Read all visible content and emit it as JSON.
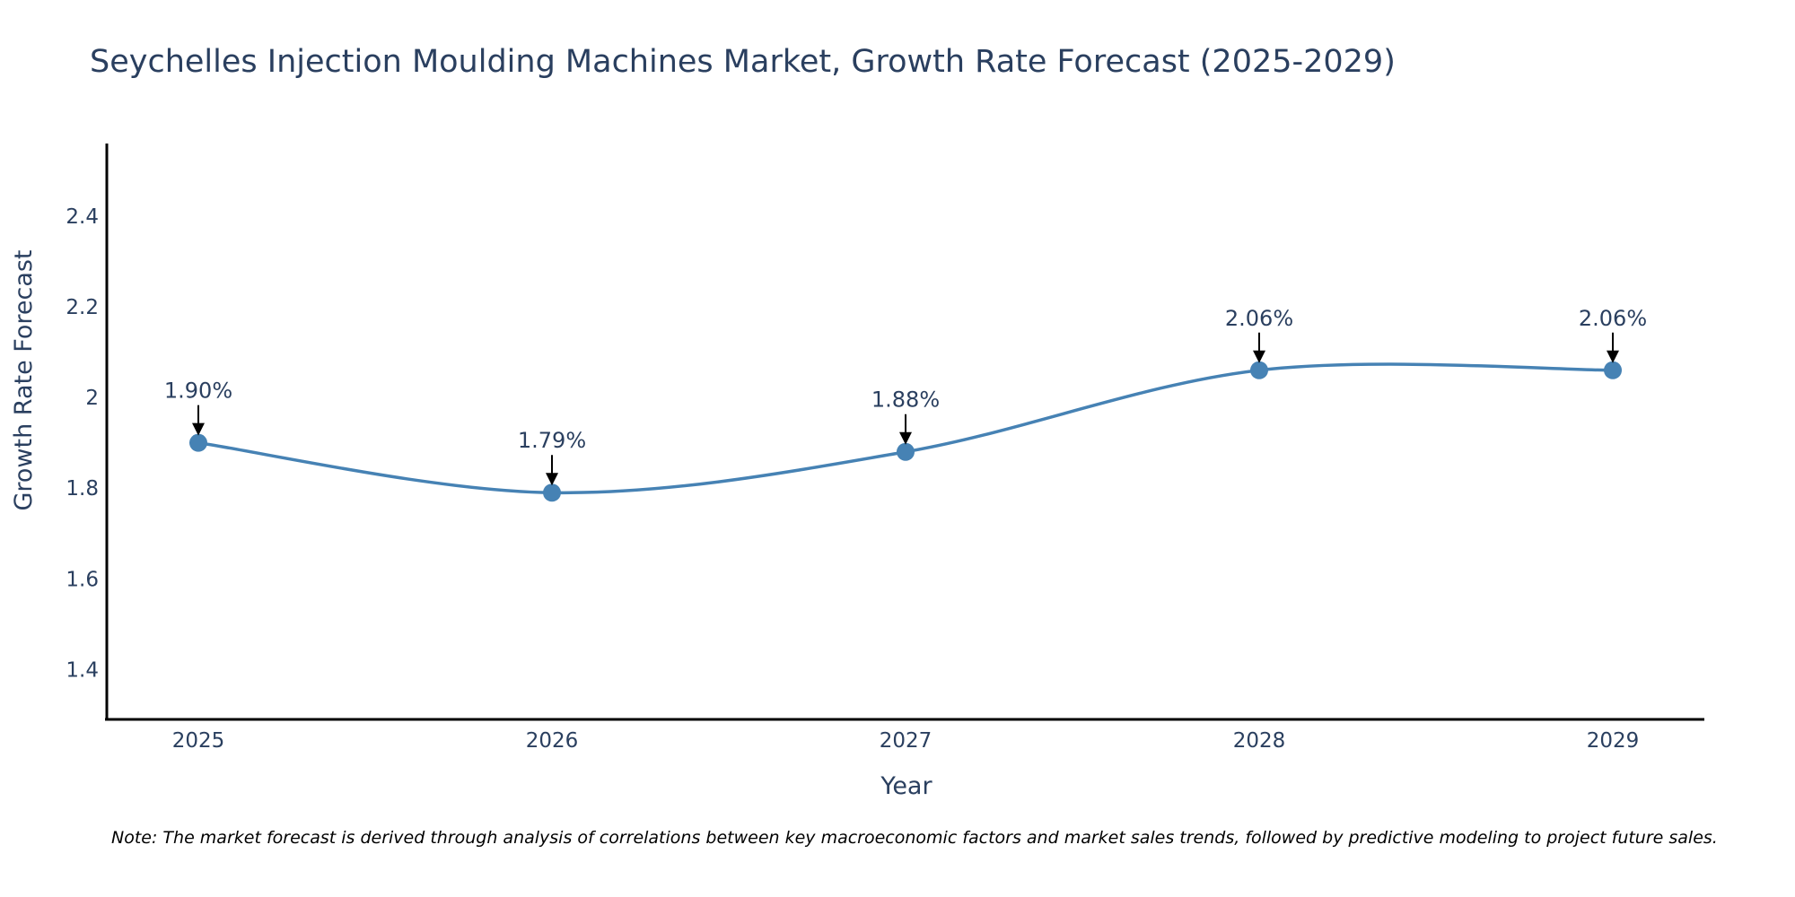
{
  "chart_data": {
    "type": "line",
    "title": "Seychelles Injection Moulding Machines Market, Growth Rate Forecast (2025-2029)",
    "xlabel": "Year",
    "ylabel": "Growth Rate Forecast",
    "categories": [
      "2025",
      "2026",
      "2027",
      "2028",
      "2029"
    ],
    "values": [
      1.9,
      1.79,
      1.88,
      2.06,
      2.06
    ],
    "data_labels": [
      "1.90%",
      "1.79%",
      "1.88%",
      "2.06%",
      "2.06%"
    ],
    "ylim": [
      1.29,
      2.56
    ],
    "yticks": [
      1.4,
      1.6,
      1.8,
      2.0,
      2.2,
      2.4
    ],
    "ytick_labels": [
      "1.4",
      "1.6",
      "1.8",
      "2",
      "2.2",
      "2.4"
    ],
    "line_shape": "spline",
    "grid": false,
    "legend": "none",
    "note": "Note: The market forecast is derived through analysis of correlations between key macroeconomic factors and market sales trends, followed by predictive modeling to project future sales."
  },
  "colors": {
    "line": "#4682b4",
    "axis": "#000000",
    "text": "#2a3f5f"
  }
}
